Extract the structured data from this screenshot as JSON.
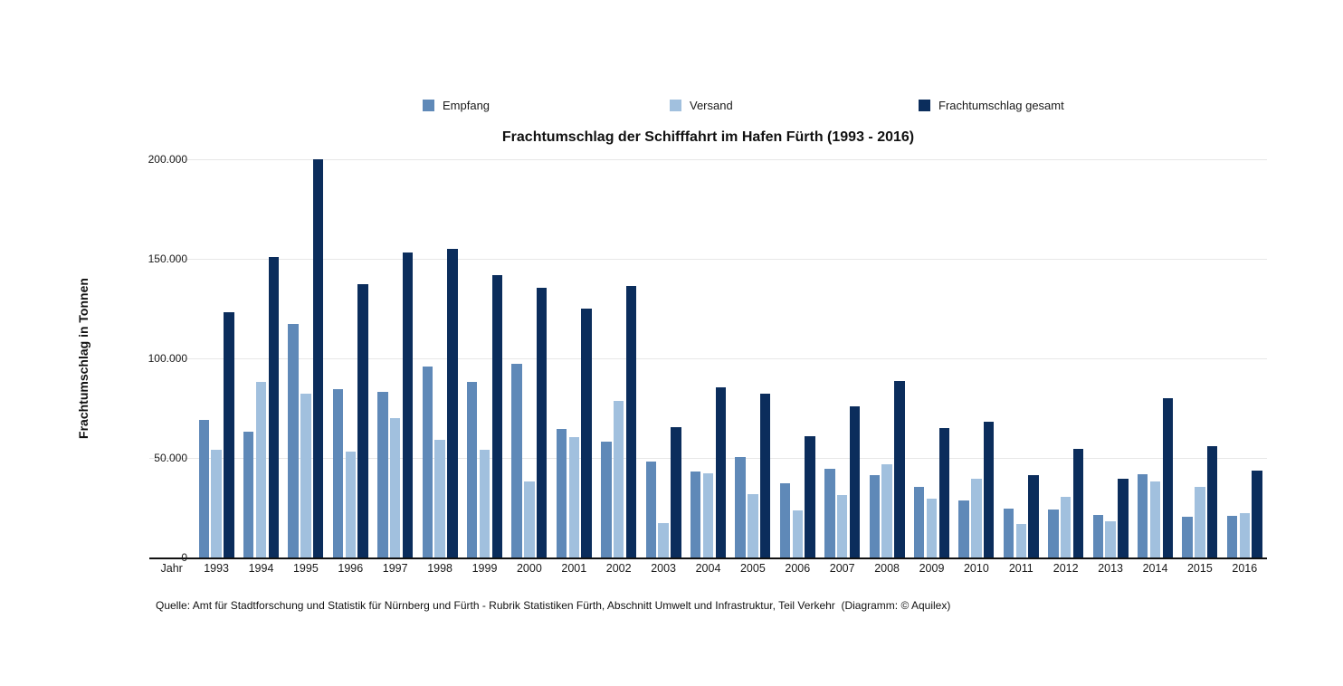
{
  "title": "Frachtumschlag der Schifffahrt im Hafen Fürth (1993 - 2016)",
  "source": "Quelle: Amt für Stadtforschung und Statistik für Nürnberg und Fürth - Rubrik Statistiken Fürth, Abschnitt Umwelt und Infrastruktur, Teil Verkehr  (Diagramm: © Aquilex)",
  "legend": {
    "items": [
      {
        "label": "Empfang",
        "color": "#5f89b8"
      },
      {
        "label": "Versand",
        "color": "#a1c0de"
      },
      {
        "label": "Frachtumschlag gesamt",
        "color": "#0b2d5c"
      }
    ]
  },
  "colors": {
    "gridline": "#e7e7e7",
    "axis": "#111111"
  },
  "chart_data": {
    "type": "bar",
    "title": "Frachtumschlag der Schifffahrt im Hafen Fürth (1993 - 2016)",
    "xlabel": "Jahr",
    "ylabel": "Frachtumschlag in Tonnen",
    "x_first_slot_label": "Jahr",
    "grid": true,
    "legend_position": "top",
    "ylim": [
      0,
      200000
    ],
    "yticks": [
      {
        "value": 0,
        "label": "0"
      },
      {
        "value": 50000,
        "label": "50.000"
      },
      {
        "value": 100000,
        "label": "100.000"
      },
      {
        "value": 150000,
        "label": "150.000"
      },
      {
        "value": 200000,
        "label": "200.000"
      }
    ],
    "categories": [
      "1993",
      "1994",
      "1995",
      "1996",
      "1997",
      "1998",
      "1999",
      "2000",
      "2001",
      "2002",
      "2003",
      "2004",
      "2005",
      "2006",
      "2007",
      "2008",
      "2009",
      "2010",
      "2011",
      "2012",
      "2013",
      "2014",
      "2015",
      "2016"
    ],
    "series": [
      {
        "name": "Empfang",
        "color": "#5f89b8",
        "values": [
          69000,
          63000,
          117500,
          84500,
          83000,
          96000,
          88000,
          97500,
          64500,
          58000,
          48000,
          43000,
          50500,
          37500,
          44500,
          41500,
          35500,
          28500,
          24500,
          24000,
          21500,
          42000,
          20500,
          21000
        ]
      },
      {
        "name": "Versand",
        "color": "#a1c0de",
        "values": [
          54000,
          88000,
          82500,
          53000,
          70000,
          59000,
          54000,
          38000,
          60500,
          78500,
          17500,
          42500,
          32000,
          23500,
          31500,
          47000,
          29500,
          39500,
          17000,
          30500,
          18000,
          38000,
          35500,
          22500
        ]
      },
      {
        "name": "Frachtumschlag gesamt",
        "color": "#0b2d5c",
        "values": [
          123000,
          151000,
          200000,
          137500,
          153000,
          155000,
          142000,
          135500,
          125000,
          136500,
          65500,
          85500,
          82500,
          61000,
          76000,
          88500,
          65000,
          68000,
          41500,
          54500,
          39500,
          80000,
          56000,
          43500
        ]
      }
    ]
  }
}
